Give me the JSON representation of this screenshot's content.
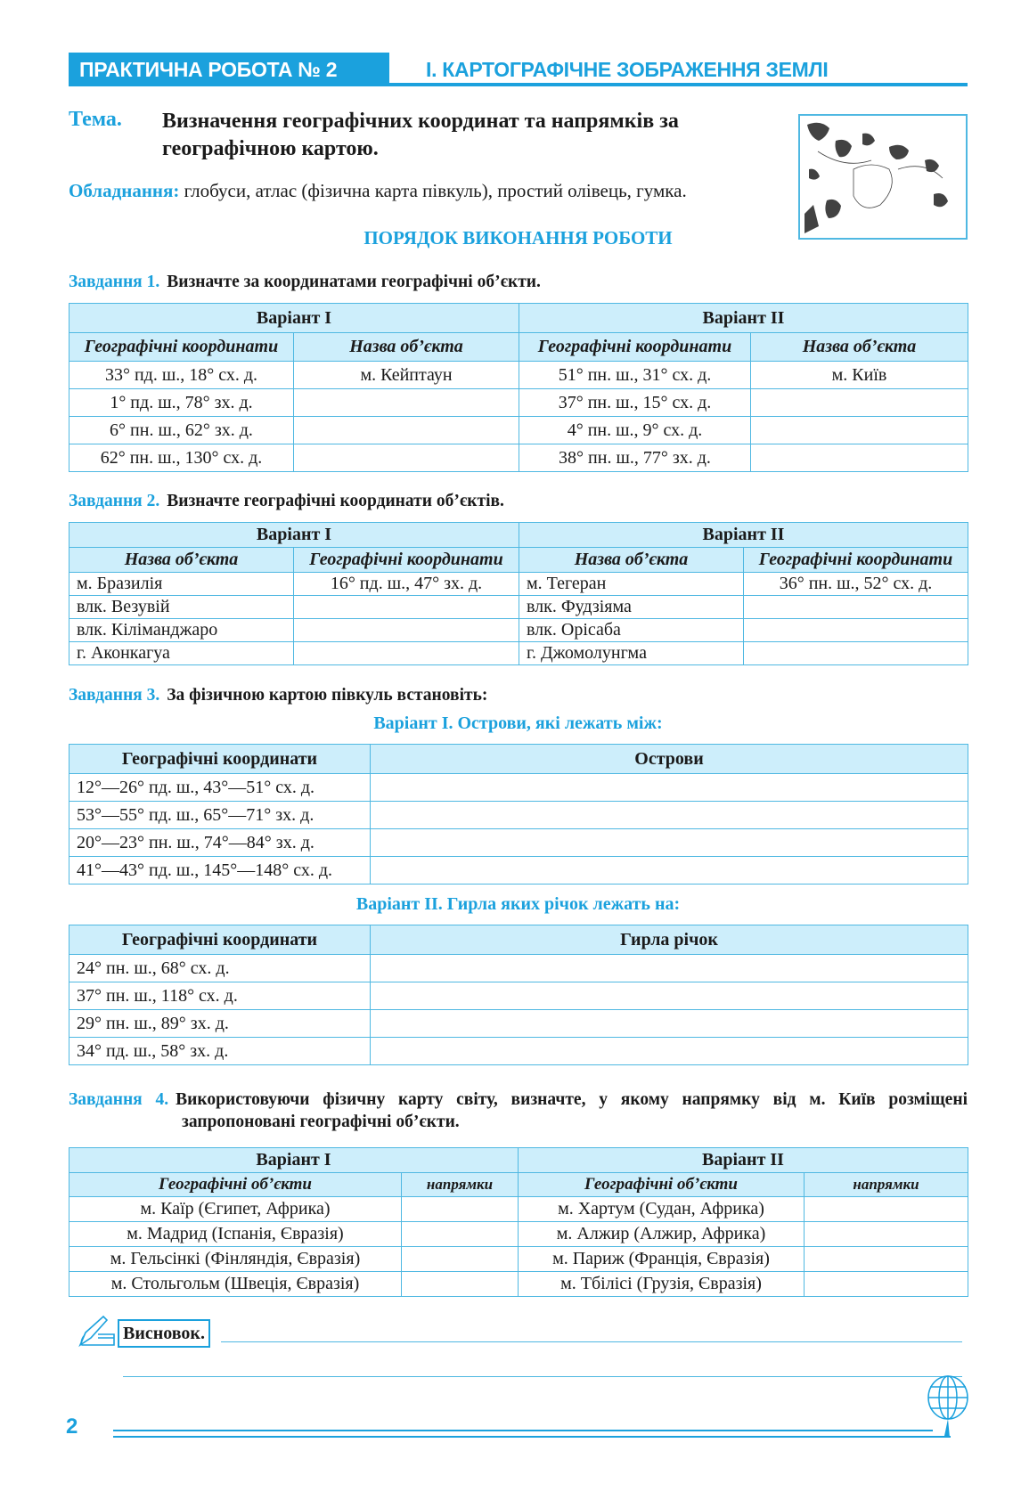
{
  "header": {
    "badge": "ПРАКТИЧНА РОБОТА № 2",
    "section": "І. КАРТОГРАФІЧНЕ ЗОБРАЖЕННЯ ЗЕМЛІ"
  },
  "topic": {
    "label": "Тема.",
    "text": "Визначення географічних координат та напрямків за географічною картою."
  },
  "equipment": {
    "label": "Обладнання:",
    "text": " глобуси, атлас (фізична карта півкуль),  простий олівець, гумка."
  },
  "procedure_title": "ПОРЯДОК ВИКОНАННЯ РОБОТИ",
  "task1": {
    "num": "Завдання 1.",
    "text": "Визначте за координатами географічні об’єкти.",
    "variants": [
      "Варіант I",
      "Варіант II"
    ],
    "columns": [
      "Географічні координати",
      "Назва об’єкта",
      "Географічні координати",
      "Назва об’єкта"
    ],
    "rows": [
      [
        "33° пд. ш., 18° сх. д.",
        "м. Кейптаун",
        "51° пн. ш., 31° сх. д.",
        "м. Київ"
      ],
      [
        "1° пд. ш., 78° зх. д.",
        "",
        "37° пн. ш., 15° сх. д.",
        ""
      ],
      [
        "6° пн. ш., 62° зх. д.",
        "",
        "4° пн. ш., 9° сх. д.",
        ""
      ],
      [
        "62° пн. ш., 130° сх. д.",
        "",
        "38° пн. ш., 77° зх. д.",
        ""
      ]
    ]
  },
  "task2": {
    "num": "Завдання 2.",
    "text": "Визначте географічні координати об’єктів.",
    "variants": [
      "Варіант I",
      "Варіант II"
    ],
    "columns": [
      "Назва об’єкта",
      "Географічні координати",
      "Назва об’єкта",
      "Географічні координати"
    ],
    "rows": [
      [
        "м. Бразилія",
        "16° пд. ш., 47° зх. д.",
        "м. Тегеран",
        "36° пн. ш., 52° сх. д."
      ],
      [
        "влк. Везувій",
        "",
        "влк. Фудзіяма",
        ""
      ],
      [
        "влк. Кіліманджаро",
        "",
        "влк. Орісаба",
        ""
      ],
      [
        "г. Аконкагуа",
        "",
        "г. Джомолунгма",
        ""
      ]
    ]
  },
  "task3": {
    "num": "Завдання 3.",
    "text": "За фізичною картою півкуль встановіть:",
    "variant1": {
      "title": "Варіант I. Острови, які лежать між:",
      "columns": [
        "Географічні координати",
        "Острови"
      ],
      "rows": [
        [
          "12°—26° пд. ш., 43°—51° сх. д.",
          ""
        ],
        [
          "53°—55° пд. ш., 65°—71° зх. д.",
          ""
        ],
        [
          "20°—23° пн. ш., 74°—84° зх. д.",
          ""
        ],
        [
          "41°—43° пд. ш., 145°—148° сх. д.",
          ""
        ]
      ]
    },
    "variant2": {
      "title": "Варіант II. Гирла яких річок лежать на:",
      "columns": [
        "Географічні координати",
        "Гирла річок"
      ],
      "rows": [
        [
          "24° пн. ш., 68° сх. д.",
          ""
        ],
        [
          "37° пн. ш., 118° сх. д.",
          ""
        ],
        [
          "29° пн. ш., 89° зх. д.",
          ""
        ],
        [
          "34° пд. ш., 58° зх. д.",
          ""
        ]
      ]
    }
  },
  "task4": {
    "num": "Завдання 4.",
    "text": "Використовуючи фізичну карту світу, визначте, у якому напрямку від м. Київ розміщені запропоновані географічні об’єкти.",
    "variants": [
      "Варіант I",
      "Варіант II"
    ],
    "columns": [
      "Географічні об’єкти",
      "напрямки",
      "Географічні об’єкти",
      "напрямки"
    ],
    "rows": [
      [
        "м. Каїр (Єгипет, Африка)",
        "",
        "м. Хартум (Судан, Африка)",
        ""
      ],
      [
        "м. Мадрид (Іспанія, Євразія)",
        "",
        "м. Алжир (Алжир, Африка)",
        ""
      ],
      [
        "м. Гельсінкі (Фінляндія, Євразія)",
        "",
        "м. Париж (Франція, Євразія)",
        ""
      ],
      [
        "м. Стольгольм (Швеція, Євразія)",
        "",
        "м. Тбілісі (Грузія, Євразія)",
        ""
      ]
    ]
  },
  "conclusion": {
    "label": "Висновок.",
    "icon": "pen-hand-icon"
  },
  "footer": {
    "page_number": "2",
    "icon": "globe-icon"
  },
  "colors": {
    "accent": "#1ba1dd",
    "header_fill": "#cdeefb",
    "border": "#4fb8e2"
  }
}
